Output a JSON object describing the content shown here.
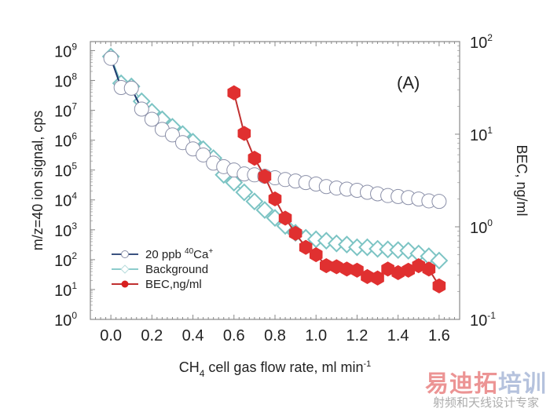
{
  "chart_data": {
    "type": "line",
    "panel_label": "(A)",
    "xlabel": {
      "main": "CH",
      "sub": "4",
      "rest": " cell gas flow rate, ml min",
      "sup": "-1"
    },
    "ylabel_left": "m/z=40 ion signal, cps",
    "ylabel_right": "BEC, ng/ml",
    "xlim": [
      -0.1,
      1.7
    ],
    "xticks": [
      "0.0",
      "0.2",
      "0.4",
      "0.6",
      "0.8",
      "1.0",
      "1.2",
      "1.4",
      "1.6"
    ],
    "xtick_values": [
      0.0,
      0.2,
      0.4,
      0.6,
      0.8,
      1.0,
      1.2,
      1.4,
      1.6
    ],
    "ylim_left_log10": [
      0,
      9.3
    ],
    "yticks_left_exponents": [
      "0",
      "1",
      "2",
      "3",
      "4",
      "5",
      "6",
      "7",
      "8",
      "9"
    ],
    "ylim_right_log10": [
      -1,
      2
    ],
    "yticks_right_exponents": [
      "-1",
      "0",
      "1",
      "2"
    ],
    "ytick_base": "10",
    "yscale": "log",
    "legend_position": "lower-left",
    "series": [
      {
        "name": "20 ppb 40Ca+",
        "legend": {
          "pre": "20 ppb ",
          "sup1": "40",
          "mid": "Ca",
          "sup2": "+"
        },
        "axis": "left",
        "marker": "circle",
        "color": "#1f3a6e",
        "marker_edge": "#8a8fa8",
        "x": [
          0.0,
          0.05,
          0.1,
          0.15,
          0.2,
          0.25,
          0.3,
          0.35,
          0.4,
          0.45,
          0.5,
          0.55,
          0.6,
          0.65,
          0.7,
          0.75,
          0.8,
          0.85,
          0.9,
          0.95,
          1.0,
          1.05,
          1.1,
          1.15,
          1.2,
          1.25,
          1.3,
          1.35,
          1.4,
          1.45,
          1.5,
          1.55,
          1.6
        ],
        "y": [
          550000000.0,
          58000000.0,
          55000000.0,
          11000000.0,
          5000000.0,
          2300000.0,
          1500000.0,
          830000.0,
          510000.0,
          320000.0,
          170000.0,
          130000.0,
          100000.0,
          74000.0,
          69000.0,
          62000.0,
          55000.0,
          48000.0,
          43000.0,
          38000.0,
          34000.0,
          28000.0,
          25000.0,
          23000.0,
          21000.0,
          18000.0,
          16000.0,
          14000.0,
          13000.0,
          12000.0,
          10700.0,
          9300.0,
          8900.0
        ]
      },
      {
        "name": "Background",
        "legend_label": "Background",
        "axis": "left",
        "marker": "diamond",
        "color": "#7cc4c4",
        "x": [
          0.0,
          0.05,
          0.1,
          0.15,
          0.2,
          0.25,
          0.3,
          0.35,
          0.4,
          0.45,
          0.5,
          0.55,
          0.6,
          0.65,
          0.7,
          0.75,
          0.8,
          0.85,
          0.9,
          0.95,
          1.0,
          1.05,
          1.1,
          1.15,
          1.2,
          1.25,
          1.3,
          1.35,
          1.4,
          1.45,
          1.5,
          1.55,
          1.6
        ],
        "y": [
          630000000.0,
          80000000.0,
          63000000.0,
          20000000.0,
          8900000.0,
          5000000.0,
          2800000.0,
          1600000.0,
          890000.0,
          500000.0,
          250000.0,
          69000.0,
          38000.0,
          18000.0,
          8900.0,
          4600.0,
          2500.0,
          1350.0,
          790.0,
          540.0,
          480.0,
          430.0,
          350.0,
          320.0,
          260.0,
          260.0,
          230.0,
          220.0,
          210.0,
          200.0,
          160.0,
          130.0,
          93.0
        ]
      },
      {
        "name": "BEC,ng/ml",
        "legend_label": "BEC,ng/ml",
        "axis": "right",
        "marker": "hexagon",
        "color": "#e03030",
        "line_color": "#c03030",
        "x": [
          0.6,
          0.65,
          0.7,
          0.75,
          0.8,
          0.85,
          0.9,
          0.95,
          1.0,
          1.05,
          1.1,
          1.15,
          1.2,
          1.25,
          1.3,
          1.35,
          1.4,
          1.45,
          1.5,
          1.55,
          1.6
        ],
        "y": [
          28,
          10.2,
          5.5,
          3.5,
          2.0,
          1.24,
          0.85,
          0.6,
          0.5,
          0.38,
          0.37,
          0.35,
          0.34,
          0.29,
          0.28,
          0.35,
          0.32,
          0.34,
          0.38,
          0.35,
          0.23
        ]
      }
    ]
  },
  "watermark": {
    "main_red": "易迪拓",
    "main_blue": "培训",
    "sub": "射频和天线设计专家"
  }
}
